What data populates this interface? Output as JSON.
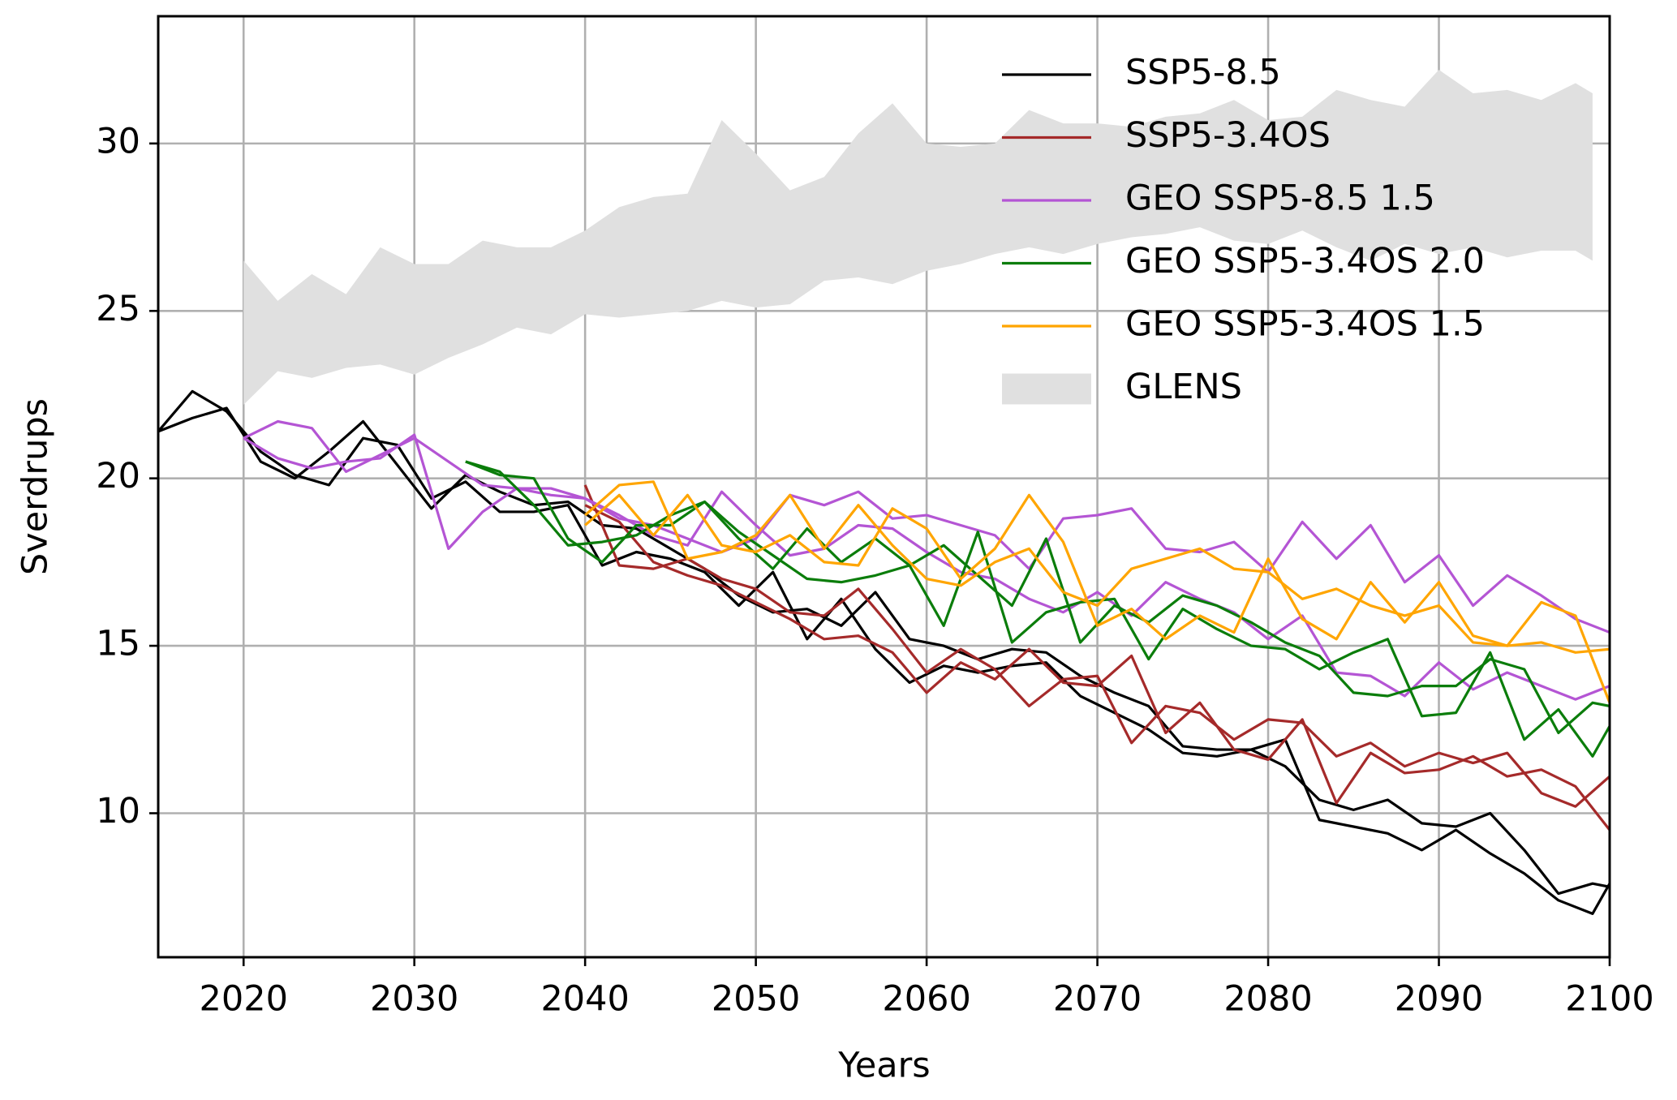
{
  "chart_data": {
    "type": "line",
    "xlabel": "Years",
    "ylabel": "Sverdrups",
    "xlim": [
      2015,
      2100
    ],
    "ylim": [
      5.7,
      33.8
    ],
    "xticks": [
      2020,
      2030,
      2040,
      2050,
      2060,
      2070,
      2080,
      2090,
      2100
    ],
    "yticks": [
      10,
      15,
      20,
      25,
      30
    ],
    "grid": true,
    "legend": "upper right",
    "band": {
      "name": "GLENS",
      "color": "#e0e0e0",
      "x": [
        2020,
        2022,
        2024,
        2026,
        2028,
        2030,
        2032,
        2034,
        2036,
        2038,
        2040,
        2042,
        2044,
        2046,
        2048,
        2050,
        2052,
        2054,
        2056,
        2058,
        2060,
        2062,
        2064,
        2066,
        2068,
        2070,
        2072,
        2074,
        2076,
        2078,
        2080,
        2082,
        2084,
        2086,
        2088,
        2090,
        2092,
        2094,
        2096,
        2098,
        2099
      ],
      "upper": [
        26.5,
        25.3,
        26.1,
        25.5,
        26.9,
        26.4,
        26.4,
        27.1,
        26.9,
        26.9,
        27.4,
        28.1,
        28.4,
        28.5,
        30.7,
        29.7,
        28.6,
        29.0,
        30.3,
        31.2,
        30.0,
        29.9,
        30.0,
        31.0,
        30.6,
        30.6,
        30.5,
        30.8,
        30.9,
        31.3,
        30.7,
        30.8,
        31.6,
        31.3,
        31.1,
        32.2,
        31.5,
        31.6,
        31.3,
        31.8,
        31.5
      ],
      "lower": [
        22.2,
        23.2,
        23.0,
        23.3,
        23.4,
        23.1,
        23.6,
        24.0,
        24.5,
        24.3,
        24.9,
        24.8,
        24.9,
        25.0,
        25.3,
        25.1,
        25.2,
        25.9,
        26.0,
        25.8,
        26.2,
        26.4,
        26.7,
        26.9,
        26.7,
        27.0,
        27.2,
        27.3,
        27.5,
        27.1,
        27.0,
        27.4,
        26.9,
        26.5,
        27.0,
        26.7,
        26.9,
        26.6,
        26.8,
        26.8,
        26.5
      ]
    },
    "series": [
      {
        "name": "SSP5-8.5",
        "color": "#000000",
        "x": [
          2015,
          2017,
          2019,
          2021,
          2023,
          2025,
          2027,
          2029,
          2031,
          2033,
          2035,
          2037,
          2039,
          2041,
          2043,
          2045,
          2047,
          2049,
          2051,
          2053,
          2055,
          2057,
          2059,
          2061,
          2063,
          2065,
          2067,
          2069,
          2071,
          2073,
          2075,
          2077,
          2079,
          2081,
          2083,
          2085,
          2087,
          2089,
          2091,
          2093,
          2095,
          2097,
          2099,
          2100
        ],
        "values": [
          21.4,
          22.6,
          22.0,
          20.8,
          20.1,
          19.8,
          21.2,
          21.0,
          19.4,
          19.9,
          19.0,
          19.0,
          19.2,
          17.4,
          17.8,
          17.6,
          17.2,
          16.2,
          17.2,
          15.2,
          16.4,
          14.9,
          13.9,
          14.4,
          14.2,
          14.4,
          14.5,
          13.5,
          13.0,
          12.5,
          11.8,
          11.7,
          11.9,
          12.2,
          9.8,
          9.6,
          9.4,
          8.9,
          9.5,
          8.8,
          8.2,
          7.4,
          7.0,
          7.9
        ]
      },
      {
        "color": "#000000",
        "x": [
          2015,
          2017,
          2019,
          2021,
          2023,
          2025,
          2027,
          2029,
          2031,
          2033,
          2035,
          2037,
          2039,
          2041,
          2043,
          2045,
          2047,
          2049,
          2051,
          2053,
          2055,
          2057,
          2059,
          2061,
          2063,
          2065,
          2067,
          2069,
          2071,
          2073,
          2075,
          2077,
          2079,
          2081,
          2083,
          2085,
          2087,
          2089,
          2091,
          2093,
          2095,
          2097,
          2099,
          2100
        ],
        "values": [
          21.4,
          21.8,
          22.1,
          20.5,
          20.0,
          20.8,
          21.7,
          20.4,
          19.1,
          20.1,
          19.6,
          19.2,
          19.3,
          18.6,
          18.5,
          17.9,
          17.3,
          16.5,
          16.0,
          16.1,
          15.6,
          16.6,
          15.2,
          15.0,
          14.6,
          14.9,
          14.8,
          14.1,
          13.6,
          13.2,
          12.0,
          11.9,
          11.9,
          11.4,
          10.4,
          10.1,
          10.4,
          9.7,
          9.6,
          10.0,
          8.9,
          7.6,
          7.9,
          7.8
        ]
      },
      {
        "name": "SSP5-3.4OS",
        "color": "#a52a2a",
        "x": [
          2040,
          2042,
          2044,
          2046,
          2048,
          2050,
          2052,
          2054,
          2056,
          2058,
          2060,
          2062,
          2064,
          2066,
          2068,
          2070,
          2072,
          2074,
          2076,
          2078,
          2080,
          2082,
          2084,
          2086,
          2088,
          2090,
          2092,
          2094,
          2096,
          2098,
          2100
        ],
        "values": [
          19.8,
          17.4,
          17.3,
          17.6,
          17.0,
          16.7,
          16.0,
          15.9,
          16.7,
          15.5,
          14.2,
          14.9,
          14.3,
          13.2,
          14.0,
          14.1,
          12.1,
          13.2,
          13.0,
          12.2,
          12.8,
          12.7,
          11.7,
          12.1,
          11.4,
          11.8,
          11.5,
          11.8,
          10.6,
          10.2,
          11.1
        ]
      },
      {
        "color": "#a52a2a",
        "x": [
          2040,
          2042,
          2044,
          2046,
          2048,
          2050,
          2052,
          2054,
          2056,
          2058,
          2060,
          2062,
          2064,
          2066,
          2068,
          2070,
          2072,
          2074,
          2076,
          2078,
          2080,
          2082,
          2084,
          2086,
          2088,
          2090,
          2092,
          2094,
          2096,
          2098,
          2100
        ],
        "values": [
          19.2,
          18.7,
          17.5,
          17.1,
          16.8,
          16.3,
          15.8,
          15.2,
          15.3,
          14.8,
          13.6,
          14.5,
          14.0,
          14.9,
          13.9,
          13.8,
          14.7,
          12.4,
          13.3,
          11.9,
          11.6,
          12.8,
          10.3,
          11.8,
          11.2,
          11.3,
          11.7,
          11.1,
          11.3,
          10.8,
          9.5
        ]
      },
      {
        "name": "GEO SSP5-8.5 1.5",
        "color": "#b455d4",
        "x": [
          2020,
          2022,
          2024,
          2026,
          2028,
          2030,
          2032,
          2034,
          2036,
          2038,
          2040,
          2042,
          2044,
          2046,
          2048,
          2050,
          2052,
          2054,
          2056,
          2058,
          2060,
          2062,
          2064,
          2066,
          2068,
          2070,
          2072,
          2074,
          2076,
          2078,
          2080,
          2082,
          2084,
          2086,
          2088,
          2090,
          2092,
          2094,
          2096,
          2098,
          2100
        ],
        "values": [
          21.2,
          21.7,
          21.5,
          20.2,
          20.7,
          21.2,
          20.5,
          19.8,
          19.7,
          19.5,
          19.4,
          18.8,
          18.6,
          18.2,
          17.8,
          18.2,
          19.5,
          19.2,
          19.6,
          18.8,
          18.9,
          18.6,
          18.3,
          17.3,
          18.8,
          18.9,
          19.1,
          17.9,
          17.8,
          18.1,
          17.2,
          18.7,
          17.6,
          18.6,
          16.9,
          17.7,
          16.2,
          17.1,
          16.5,
          15.8,
          15.4
        ]
      },
      {
        "color": "#b455d4",
        "x": [
          2020,
          2022,
          2024,
          2026,
          2028,
          2030,
          2032,
          2034,
          2036,
          2038,
          2040,
          2042,
          2044,
          2046,
          2048,
          2050,
          2052,
          2054,
          2056,
          2058,
          2060,
          2062,
          2064,
          2066,
          2068,
          2070,
          2072,
          2074,
          2076,
          2078,
          2080,
          2082,
          2084,
          2086,
          2088,
          2090,
          2092,
          2094,
          2096,
          2098,
          2100
        ],
        "values": [
          21.2,
          20.6,
          20.3,
          20.5,
          20.6,
          21.3,
          17.9,
          19.0,
          19.7,
          19.7,
          19.4,
          18.9,
          18.3,
          18.0,
          19.6,
          18.6,
          17.7,
          17.9,
          18.6,
          18.5,
          17.8,
          17.2,
          17.0,
          16.4,
          16.0,
          16.6,
          15.9,
          16.9,
          16.4,
          16.0,
          15.2,
          15.9,
          14.2,
          14.1,
          13.5,
          14.5,
          13.7,
          14.2,
          13.8,
          13.4,
          13.8
        ]
      },
      {
        "name": "GEO SSP5-3.4OS 2.0",
        "color": "#0b7d0b",
        "x": [
          2033,
          2035,
          2037,
          2039,
          2041,
          2043,
          2045,
          2047,
          2049,
          2051,
          2053,
          2055,
          2057,
          2059,
          2061,
          2063,
          2065,
          2067,
          2069,
          2071,
          2073,
          2075,
          2077,
          2079,
          2081,
          2083,
          2085,
          2087,
          2089,
          2091,
          2093,
          2095,
          2097,
          2099,
          2100
        ],
        "values": [
          20.5,
          20.2,
          19.2,
          18.0,
          18.1,
          18.3,
          18.9,
          19.3,
          18.4,
          17.7,
          17.0,
          16.9,
          17.1,
          17.4,
          18.0,
          17.1,
          16.2,
          18.2,
          15.1,
          16.2,
          15.7,
          16.5,
          16.2,
          15.7,
          15.1,
          14.7,
          13.6,
          13.5,
          13.8,
          13.8,
          14.6,
          14.3,
          12.4,
          13.3,
          13.2
        ]
      },
      {
        "color": "#0b7d0b",
        "x": [
          2033,
          2035,
          2037,
          2039,
          2041,
          2043,
          2045,
          2047,
          2049,
          2051,
          2053,
          2055,
          2057,
          2059,
          2061,
          2063,
          2065,
          2067,
          2069,
          2071,
          2073,
          2075,
          2077,
          2079,
          2081,
          2083,
          2085,
          2087,
          2089,
          2091,
          2093,
          2095,
          2097,
          2099,
          2100
        ],
        "values": [
          20.5,
          20.1,
          20.0,
          18.2,
          17.5,
          18.6,
          18.6,
          19.3,
          18.2,
          17.3,
          18.5,
          17.5,
          18.2,
          17.4,
          15.6,
          18.4,
          15.1,
          16.0,
          16.3,
          16.4,
          14.6,
          16.1,
          15.5,
          15.0,
          14.9,
          14.3,
          14.8,
          15.2,
          12.9,
          13.0,
          14.8,
          12.2,
          13.1,
          11.7,
          12.6
        ]
      },
      {
        "name": "GEO SSP5-3.4OS 1.5",
        "color": "#ffa500",
        "x": [
          2040,
          2042,
          2044,
          2046,
          2048,
          2050,
          2052,
          2054,
          2056,
          2058,
          2060,
          2062,
          2064,
          2066,
          2068,
          2070,
          2072,
          2074,
          2076,
          2078,
          2080,
          2082,
          2084,
          2086,
          2088,
          2090,
          2092,
          2094,
          2096,
          2098,
          2100
        ],
        "values": [
          18.9,
          19.8,
          19.9,
          17.6,
          17.8,
          18.3,
          19.5,
          17.9,
          19.2,
          18.0,
          17.0,
          16.8,
          17.5,
          17.9,
          16.6,
          16.2,
          17.3,
          17.6,
          17.9,
          17.3,
          17.2,
          16.4,
          16.7,
          16.2,
          15.9,
          16.2,
          15.1,
          15.0,
          15.1,
          14.8,
          14.9
        ]
      },
      {
        "color": "#ffa500",
        "x": [
          2040,
          2042,
          2044,
          2046,
          2048,
          2050,
          2052,
          2054,
          2056,
          2058,
          2060,
          2062,
          2064,
          2066,
          2068,
          2070,
          2072,
          2074,
          2076,
          2078,
          2080,
          2082,
          2084,
          2086,
          2088,
          2090,
          2092,
          2094,
          2096,
          2098,
          2100
        ],
        "values": [
          18.6,
          19.5,
          18.3,
          19.5,
          18.0,
          17.8,
          18.3,
          17.5,
          17.4,
          19.1,
          18.5,
          17.0,
          17.9,
          19.5,
          18.1,
          15.6,
          16.1,
          15.2,
          15.9,
          15.4,
          17.6,
          15.8,
          15.2,
          16.9,
          15.7,
          16.9,
          15.3,
          15.0,
          16.3,
          15.9,
          13.3
        ]
      }
    ]
  }
}
